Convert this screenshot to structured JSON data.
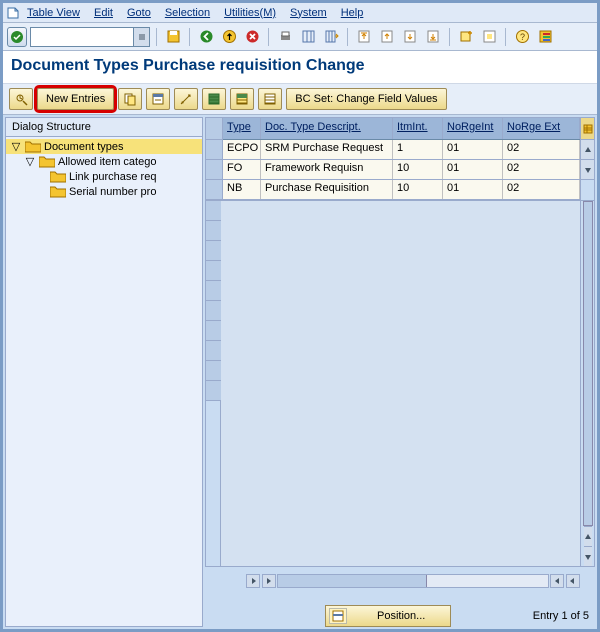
{
  "menu": {
    "tableView": "Table View",
    "edit": "Edit",
    "goto": "Goto",
    "selection": "Selection",
    "utilities": "Utilities(M)",
    "system": "System",
    "help": "Help"
  },
  "title": "Document Types Purchase requisition Change",
  "apptoolbar": {
    "newEntries": "New Entries",
    "bcSet": "BC Set: Change Field Values"
  },
  "dialog": {
    "structureTitle": "Dialog Structure",
    "documentTypes": "Document types",
    "allowedItem": "Allowed item catego",
    "linkPurchase": "Link purchase req",
    "serialNumber": "Serial number pro"
  },
  "table": {
    "columns": {
      "type": "Type",
      "desc": "Doc. Type Descript.",
      "itmint": "ItmInt.",
      "norgeint": "NoRgeInt",
      "norgeext": "NoRge Ext"
    },
    "colWidths": {
      "type": 38,
      "desc": 132,
      "itmint": 50,
      "norgeint": 60,
      "norgeext": 60
    },
    "rows": [
      {
        "type": "ECPO",
        "desc": "SRM Purchase Request",
        "itmint": "1",
        "norgeint": "01",
        "norgeext": "02"
      },
      {
        "type": "FO",
        "desc": "Framework Requisn",
        "itmint": "10",
        "norgeint": "01",
        "norgeext": "02"
      },
      {
        "type": "NB",
        "desc": "Purchase Requisition",
        "itmint": "10",
        "norgeint": "01",
        "norgeext": "02"
      }
    ]
  },
  "position": {
    "label": "Position..."
  },
  "entry": {
    "text": "Entry 1 of 5"
  },
  "colors": {
    "accent": "#003a7a",
    "highlight": "#d60000",
    "headerBg": "#9cb6d8",
    "rowBg": "#faf9ef"
  }
}
